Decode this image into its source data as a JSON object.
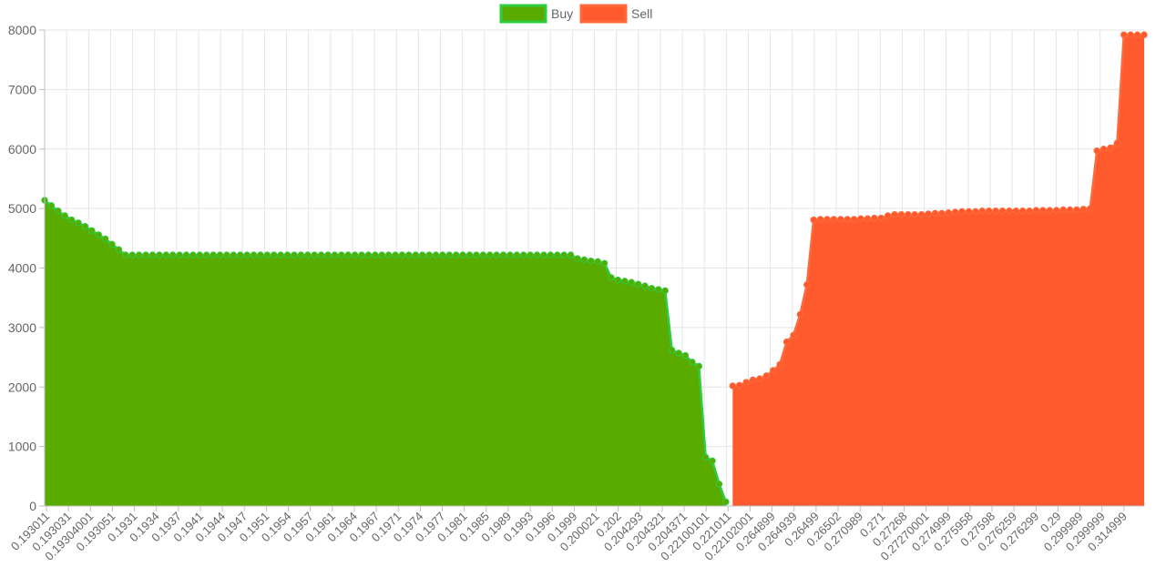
{
  "chart_data": {
    "type": "area",
    "legend": {
      "position": "top-center",
      "items": [
        {
          "name": "Buy",
          "color": "#5aab00",
          "border": "#2ecc40"
        },
        {
          "name": "Sell",
          "color": "#ff5a2e",
          "border": "#ff6a3d"
        }
      ]
    },
    "ylim": [
      0,
      8000
    ],
    "y_ticks": [
      0,
      1000,
      2000,
      3000,
      4000,
      5000,
      6000,
      7000,
      8000
    ],
    "grid": true,
    "x_tick_labels": [
      "0.193011",
      "0.193031",
      "0.19304001",
      "0.193051",
      "0.1931",
      "0.1934",
      "0.1937",
      "0.1941",
      "0.1944",
      "0.1947",
      "0.1951",
      "0.1954",
      "0.1957",
      "0.1961",
      "0.1964",
      "0.1967",
      "0.1971",
      "0.1974",
      "0.1977",
      "0.1981",
      "0.1985",
      "0.1989",
      "0.1993",
      "0.1996",
      "0.1999",
      "0.200021",
      "0.202",
      "0.204293",
      "0.204321",
      "0.204371",
      "0.22100101",
      "0.221011",
      "0.22102001",
      "0.264899",
      "0.264939",
      "0.26499",
      "0.26502",
      "0.270989",
      "0.271",
      "0.27268",
      "0.27270001",
      "0.274999",
      "0.275958",
      "0.27598",
      "0.276259",
      "0.276299",
      "0.29",
      "0.299989",
      "0.299999",
      "0.314999"
    ],
    "series": [
      {
        "name": "Buy",
        "color": "#5aab00",
        "border": "#2ecc40",
        "values": [
          5140,
          5050,
          4960,
          4880,
          4810,
          4760,
          4700,
          4630,
          4560,
          4490,
          4400,
          4310,
          4220,
          4220,
          4220,
          4220,
          4220,
          4220,
          4220,
          4220,
          4220,
          4220,
          4220,
          4220,
          4220,
          4220,
          4220,
          4220,
          4220,
          4220,
          4220,
          4220,
          4220,
          4220,
          4220,
          4220,
          4220,
          4220,
          4220,
          4220,
          4220,
          4220,
          4220,
          4220,
          4220,
          4220,
          4220,
          4220,
          4220,
          4220,
          4220,
          4220,
          4220,
          4220,
          4220,
          4220,
          4220,
          4220,
          4220,
          4220,
          4220,
          4220,
          4220,
          4220,
          4220,
          4220,
          4220,
          4220,
          4220,
          4220,
          4220,
          4220,
          4220,
          4220,
          4220,
          4220,
          4220,
          4220,
          4220,
          4160,
          4140,
          4120,
          4110,
          4080,
          3840,
          3800,
          3780,
          3760,
          3730,
          3700,
          3660,
          3640,
          3620,
          2620,
          2570,
          2530,
          2420,
          2350,
          820,
          760,
          370,
          70
        ]
      },
      {
        "name": "Sell",
        "color": "#ff5a2e",
        "border": "#ff6a3d",
        "values": [
          2020,
          2030,
          2080,
          2120,
          2140,
          2190,
          2280,
          2380,
          2760,
          2870,
          3220,
          3720,
          4810,
          4820,
          4820,
          4820,
          4820,
          4820,
          4820,
          4830,
          4830,
          4840,
          4840,
          4880,
          4900,
          4900,
          4900,
          4900,
          4900,
          4910,
          4920,
          4920,
          4930,
          4940,
          4950,
          4950,
          4950,
          4960,
          4960,
          4960,
          4960,
          4960,
          4960,
          4960,
          4960,
          4970,
          4970,
          4970,
          4970,
          4980,
          4980,
          4980,
          4990,
          5000,
          5970,
          6000,
          6020,
          6100,
          7920,
          7920,
          7920,
          7920
        ]
      }
    ]
  }
}
